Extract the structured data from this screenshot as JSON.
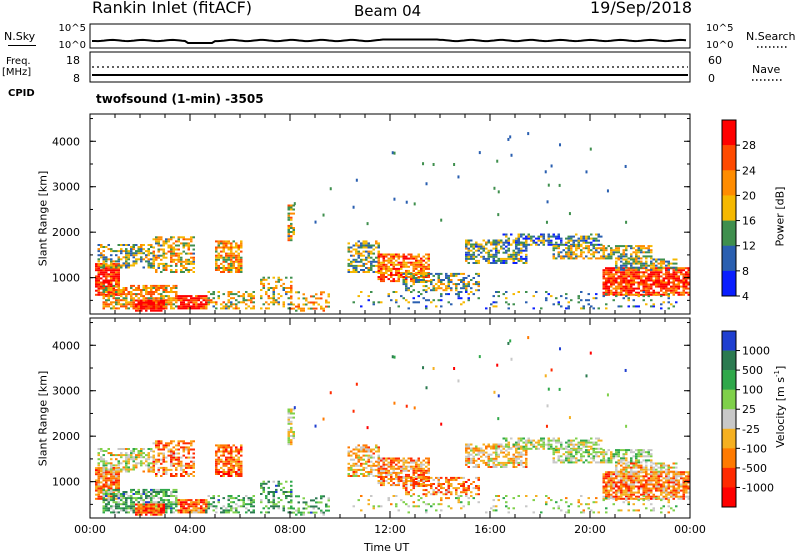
{
  "header": {
    "site": "Rankin Inlet (fitACF)",
    "beam": "Beam 04",
    "date": "19/Sep/2018"
  },
  "noise_panel": {
    "left_label": "N.Sky",
    "left_ticks": [
      "10^5",
      "10^0"
    ],
    "right_label": "N.Search",
    "right_ticks": [
      "10^5",
      "10^0"
    ]
  },
  "freq_panel": {
    "left_label_1": "Freq.",
    "left_label_2": "[MHz]",
    "left_ticks": [
      "18",
      "8"
    ],
    "right_label": "Nave",
    "right_ticks": [
      "60",
      "0"
    ]
  },
  "cpid": {
    "label": "CPID",
    "program": "twofsound (1-min) -3505"
  },
  "power_colorbar": {
    "label": "Power [dB]",
    "ticks": [
      "28",
      "24",
      "20",
      "16",
      "12",
      "8",
      "4"
    ],
    "colors": [
      "#ff0000",
      "#ff4a00",
      "#ff8c00",
      "#f5b800",
      "#3f8f4e",
      "#2a5fb0",
      "#0a1eff"
    ]
  },
  "velocity_colorbar": {
    "label": "Velocity [m s",
    "label_sup": "-1",
    "label_end": "]",
    "ticks": [
      "1000",
      "500",
      "100",
      "25",
      "-25",
      "-100",
      "-500",
      "-1000"
    ],
    "colors": [
      "#1f3fd0",
      "#2b7a50",
      "#2fa84a",
      "#7fd04a",
      "#c8c8c8",
      "#f5b020",
      "#ff7a00",
      "#ff2a00",
      "#ff0000"
    ]
  },
  "chart_data": [
    {
      "type": "heatmap",
      "title": "Power",
      "xlabel": "",
      "ylabel": "Slant Range [km]",
      "yticks": [
        "1000",
        "2000",
        "3000",
        "4000"
      ],
      "ylim": [
        200,
        4600
      ],
      "xlim": [
        "00:00",
        "24:00"
      ],
      "xticks": [
        "00:00",
        "04:00",
        "08:00",
        "12:00",
        "16:00",
        "20:00",
        "00:00"
      ],
      "colorbar_label": "Power [dB]",
      "colorbar_range": [
        0,
        32
      ]
    },
    {
      "type": "heatmap",
      "title": "Velocity",
      "xlabel": "Time UT",
      "ylabel": "Slant Range [km]",
      "yticks": [
        "1000",
        "2000",
        "3000",
        "4000"
      ],
      "ylim": [
        200,
        4600
      ],
      "xlim": [
        "00:00",
        "24:00"
      ],
      "xticks": [
        "00:00",
        "04:00",
        "08:00",
        "12:00",
        "16:00",
        "20:00",
        "00:00"
      ],
      "colorbar_label": "Velocity [m s-1]",
      "colorbar_range": [
        -1000,
        1000
      ]
    }
  ]
}
